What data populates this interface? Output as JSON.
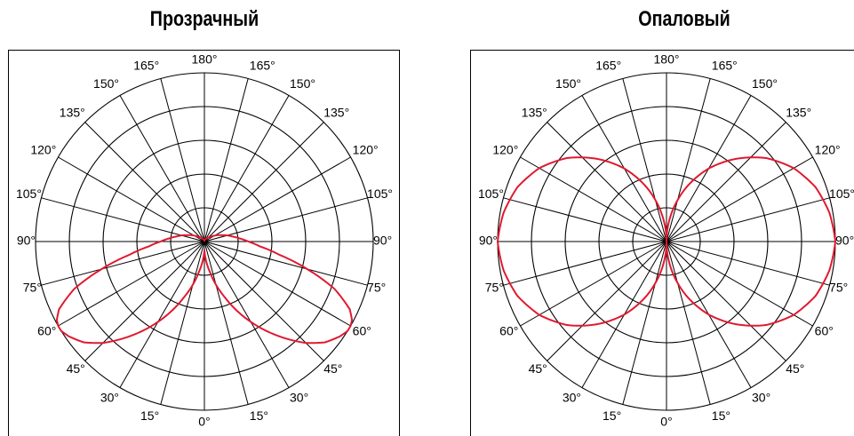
{
  "chart_data": [
    {
      "type": "polar",
      "title": "Прозрачный",
      "angle_ticks": [
        "180°",
        "165°",
        "150°",
        "135°",
        "120°",
        "105°",
        "90°",
        "75°",
        "60°",
        "45°",
        "30°",
        "15°",
        "0°"
      ],
      "rings": 5,
      "series_color": "#e0192f",
      "curve": {
        "angles_deg": [
          0,
          10,
          20,
          30,
          40,
          45,
          50,
          55,
          58,
          60,
          62,
          65,
          70,
          75,
          80,
          85,
          90,
          95,
          100,
          105,
          110,
          120,
          130,
          150,
          180
        ],
        "values": [
          0.05,
          0.18,
          0.35,
          0.55,
          0.75,
          0.85,
          0.93,
          0.98,
          1.0,
          1.0,
          0.99,
          0.95,
          0.82,
          0.63,
          0.45,
          0.33,
          0.26,
          0.21,
          0.17,
          0.14,
          0.11,
          0.07,
          0.04,
          0.02,
          0.0
        ]
      }
    },
    {
      "type": "polar",
      "title": "Опаловый",
      "angle_ticks": [
        "180°",
        "165°",
        "150°",
        "135°",
        "120°",
        "105°",
        "90°",
        "75°",
        "60°",
        "45°",
        "30°",
        "15°",
        "0°"
      ],
      "rings": 5,
      "series_color": "#e0192f",
      "curve": {
        "angles_deg": [
          0,
          10,
          20,
          30,
          40,
          50,
          60,
          70,
          80,
          90,
          100,
          110,
          120,
          130,
          140,
          150,
          160,
          170,
          180
        ],
        "values": [
          0.0,
          0.17,
          0.34,
          0.5,
          0.64,
          0.77,
          0.87,
          0.94,
          0.98,
          1.0,
          0.98,
          0.94,
          0.87,
          0.77,
          0.64,
          0.5,
          0.34,
          0.17,
          0.0
        ]
      }
    }
  ]
}
